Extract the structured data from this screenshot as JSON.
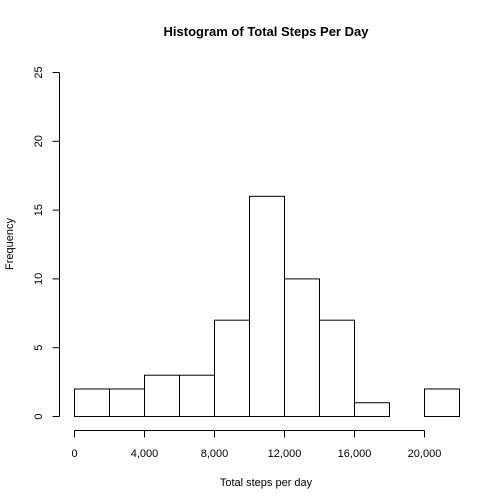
{
  "chart_data": {
    "type": "bar",
    "subtype": "histogram",
    "title": "Histogram of Total Steps Per Day",
    "xlabel": "Total steps per day",
    "ylabel": "Frequency",
    "bin_width": 2000,
    "bin_starts": [
      0,
      2000,
      4000,
      6000,
      8000,
      10000,
      12000,
      14000,
      16000,
      18000,
      20000
    ],
    "values": [
      2,
      2,
      3,
      3,
      7,
      16,
      10,
      7,
      1,
      0,
      2
    ],
    "xlim": [
      0,
      22000
    ],
    "ylim": [
      0,
      25
    ],
    "x_ticks": [
      0,
      4000,
      8000,
      12000,
      16000,
      20000
    ],
    "x_tick_labels": [
      "0",
      "4,000",
      "8,000",
      "12,000",
      "16,000",
      "20,000"
    ],
    "y_ticks": [
      0,
      5,
      10,
      15,
      20,
      25
    ],
    "y_tick_labels": [
      "0",
      "5",
      "10",
      "15",
      "20",
      "25"
    ],
    "grid": false,
    "legend": "none"
  }
}
